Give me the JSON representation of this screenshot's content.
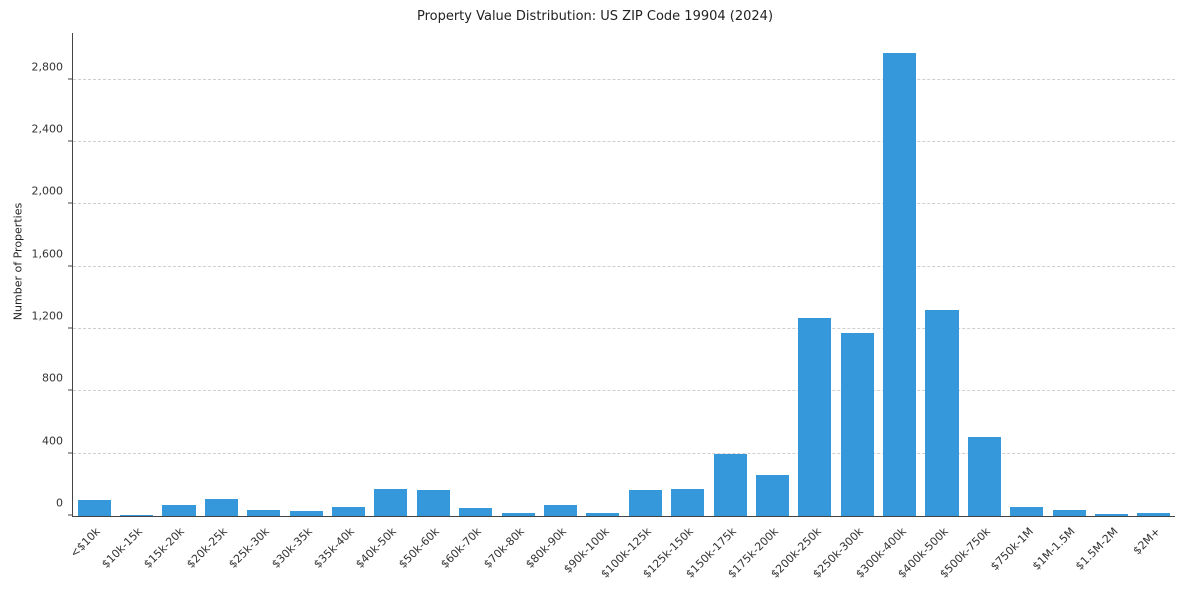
{
  "chart_data": {
    "type": "bar",
    "title": "Property Value Distribution: US ZIP Code 19904 (2024)",
    "xlabel": "",
    "ylabel": "Number of Properties",
    "categories": [
      "<$10k",
      "$10k-15k",
      "$15k-20k",
      "$20k-25k",
      "$25k-30k",
      "$30k-35k",
      "$35k-40k",
      "$40k-50k",
      "$50k-60k",
      "$60k-70k",
      "$70k-80k",
      "$80k-90k",
      "$90k-100k",
      "$100k-125k",
      "$125k-150k",
      "$150k-175k",
      "$175k-200k",
      "$200k-250k",
      "$250k-300k",
      "$300k-400k",
      "$400k-500k",
      "$500k-750k",
      "$750k-1M",
      "$1M-1.5M",
      "$1.5M-2M",
      "$2M+"
    ],
    "values": [
      100,
      5,
      70,
      110,
      40,
      30,
      55,
      175,
      165,
      50,
      20,
      70,
      20,
      165,
      175,
      395,
      265,
      1270,
      1175,
      2970,
      1320,
      510,
      55,
      40,
      15,
      20
    ],
    "ylim": [
      0,
      3100
    ],
    "yticks": [
      0,
      400,
      800,
      1200,
      1600,
      2000,
      2400,
      2800
    ],
    "bar_color": "#3498db",
    "grid": "horizontal-dashed",
    "legend": "none"
  }
}
